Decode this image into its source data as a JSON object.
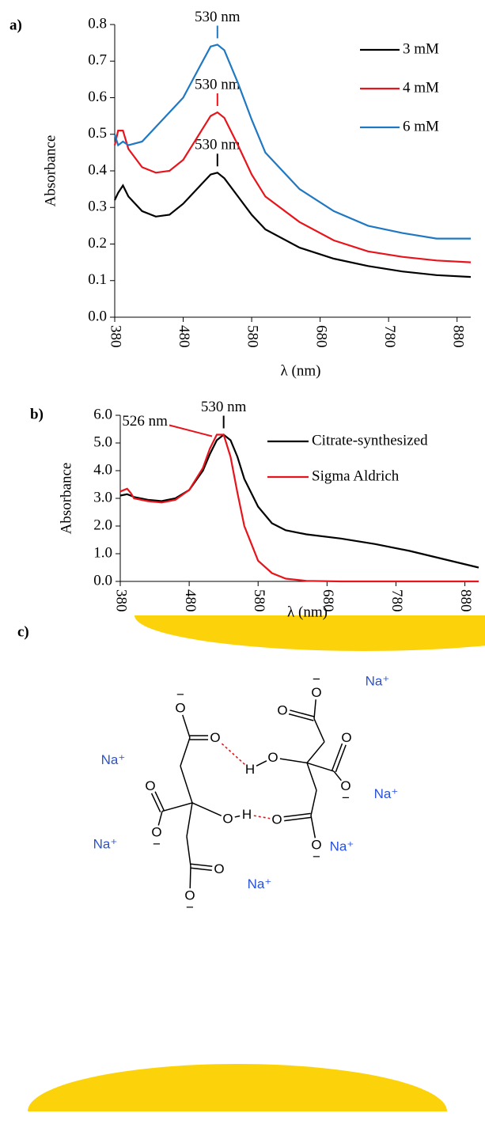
{
  "chart_data": [
    {
      "type": "line",
      "panel": "a)",
      "xlabel": "λ (nm)",
      "ylabel": "Absorbance",
      "x": [
        380,
        385,
        392,
        400,
        420,
        440,
        460,
        480,
        500,
        520,
        530,
        540,
        560,
        580,
        600,
        650,
        700,
        750,
        800,
        850,
        900
      ],
      "xlim": [
        380,
        900
      ],
      "xticks": [
        380,
        480,
        580,
        680,
        780,
        880
      ],
      "ylim": [
        0,
        0.8
      ],
      "yticks": [
        {
          "value": 0,
          "label": "0.0"
        },
        0.1,
        0.2,
        0.3,
        0.4,
        0.5,
        0.6,
        0.7,
        0.8
      ],
      "legend": "top-right",
      "series": [
        {
          "name": "3 mM",
          "color": "#000000",
          "annotation": "530 nm",
          "values": [
            0.32,
            0.34,
            0.36,
            0.33,
            0.29,
            0.275,
            0.28,
            0.31,
            0.35,
            0.39,
            0.395,
            0.38,
            0.33,
            0.28,
            0.24,
            0.19,
            0.16,
            0.14,
            0.125,
            0.115,
            0.11
          ]
        },
        {
          "name": "4 mM",
          "color": "#e8141c",
          "annotation": "530 nm",
          "values": [
            0.47,
            0.51,
            0.51,
            0.46,
            0.41,
            0.395,
            0.4,
            0.43,
            0.49,
            0.55,
            0.56,
            0.545,
            0.47,
            0.39,
            0.33,
            0.26,
            0.21,
            0.18,
            0.165,
            0.155,
            0.15
          ]
        },
        {
          "name": "6 mM",
          "color": "#1f78c1",
          "annotation": "530 nm",
          "values": [
            0.5,
            0.47,
            0.48,
            0.47,
            0.48,
            0.52,
            0.56,
            0.6,
            0.67,
            0.74,
            0.745,
            0.73,
            0.64,
            0.54,
            0.45,
            0.35,
            0.29,
            0.25,
            0.23,
            0.215,
            0.215
          ]
        }
      ]
    },
    {
      "type": "line",
      "panel": "b)",
      "xlabel": "λ (nm)",
      "ylabel": "Absorbance",
      "x": [
        380,
        390,
        395,
        400,
        420,
        440,
        460,
        480,
        500,
        510,
        520,
        530,
        540,
        550,
        560,
        580,
        600,
        620,
        650,
        700,
        750,
        800,
        850,
        900
      ],
      "xlim": [
        380,
        900
      ],
      "xticks": [
        380,
        480,
        580,
        680,
        780,
        880
      ],
      "ylim": [
        0,
        6
      ],
      "yticks": [
        {
          "value": 0,
          "label": "0.0"
        },
        {
          "value": 1,
          "label": "1.0"
        },
        {
          "value": 2,
          "label": "2.0"
        },
        {
          "value": 3,
          "label": "3.0"
        },
        {
          "value": 4,
          "label": "4.0"
        },
        {
          "value": 5,
          "label": "5.0"
        },
        {
          "value": 6,
          "label": "6.0"
        }
      ],
      "legend": "top-right",
      "series": [
        {
          "name": "Citrate-synthesized",
          "color": "#000000",
          "annotation": "530 nm",
          "values": [
            3.1,
            3.15,
            3.1,
            3.05,
            2.95,
            2.9,
            3.0,
            3.3,
            4.0,
            4.6,
            5.1,
            5.3,
            5.1,
            4.5,
            3.7,
            2.7,
            2.1,
            1.85,
            1.7,
            1.55,
            1.35,
            1.1,
            0.8,
            0.5
          ]
        },
        {
          "name": "Sigma Aldrich",
          "color": "#e8141c",
          "annotation": "526 nm",
          "values": [
            3.25,
            3.35,
            3.2,
            3.0,
            2.9,
            2.85,
            2.95,
            3.3,
            4.1,
            4.8,
            5.3,
            5.3,
            4.5,
            3.2,
            2.0,
            0.75,
            0.3,
            0.1,
            0.02,
            0,
            0,
            0,
            0,
            0
          ]
        }
      ]
    }
  ],
  "diagram": {
    "label": "c)",
    "ions": [
      "Na⁺",
      "Na⁺",
      "Na⁺",
      "Na⁺",
      "Na⁺",
      "Na⁺"
    ],
    "atoms": [
      {
        "symbol": "O",
        "charge": "−"
      },
      {
        "symbol": "O"
      },
      {
        "symbol": "O"
      },
      {
        "symbol": "H"
      },
      {
        "symbol": "O"
      },
      {
        "symbol": "O",
        "charge": "−"
      },
      {
        "symbol": "O"
      },
      {
        "symbol": "O",
        "charge": "−"
      },
      {
        "symbol": "O",
        "charge": "−"
      },
      {
        "symbol": "O"
      },
      {
        "symbol": "O"
      },
      {
        "symbol": "H"
      },
      {
        "symbol": "O"
      },
      {
        "symbol": "O",
        "charge": "−"
      },
      {
        "symbol": "O"
      },
      {
        "symbol": "O",
        "charge": "−"
      }
    ]
  }
}
